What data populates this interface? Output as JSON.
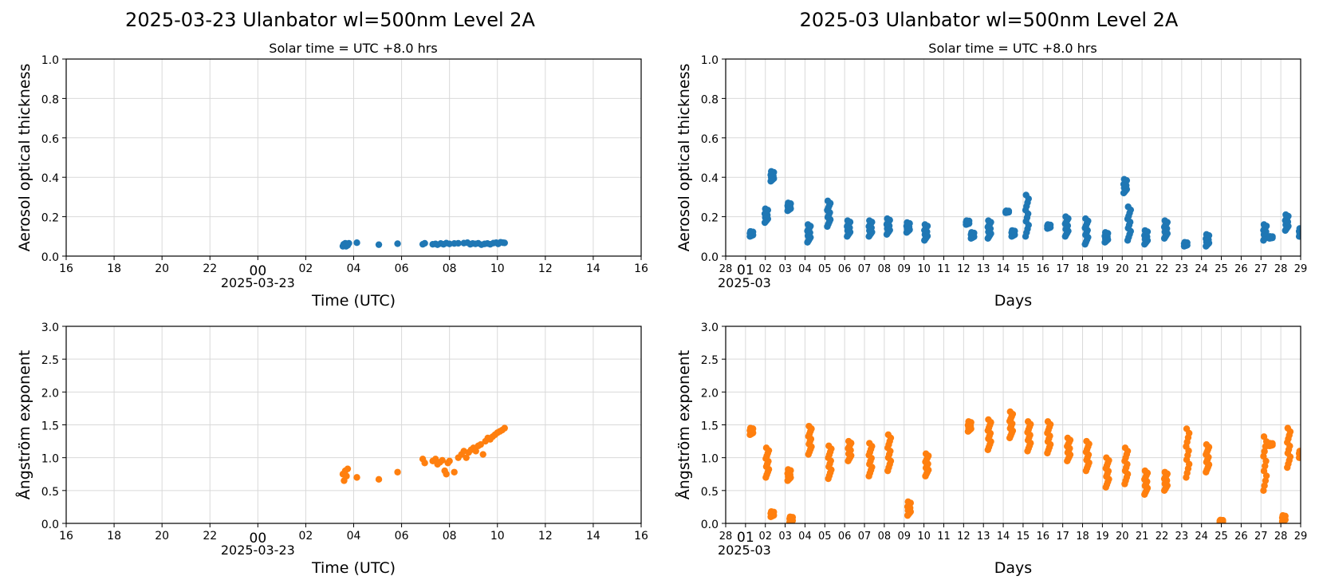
{
  "figure": {
    "left_title": "2025-03-23  Ulanbator  wl=500nm  Level 2A",
    "right_title": "2025-03  Ulanbator  wl=500nm  Level 2A",
    "left_subtitle": "Solar time = UTC +8.0 hrs",
    "right_subtitle": "Solar time = UTC +8.0 hrs"
  },
  "colors": {
    "aod": "#1f77b4",
    "angstrom": "#ff7f0e"
  },
  "chart_data": [
    {
      "id": "daily-aod",
      "type": "scatter",
      "title": "2025-03-23  Ulanbator  wl=500nm  Level 2A",
      "subtitle": "Solar time = UTC +8.0 hrs",
      "xlabel": "Time (UTC)",
      "ylabel": "Aerosol optical thickness",
      "xlim": [
        "2025-03-22 16:00",
        "2025-03-23 16:00"
      ],
      "ylim": [
        0,
        1.0
      ],
      "yticks": [
        0.0,
        0.2,
        0.4,
        0.6,
        0.8,
        1.0
      ],
      "xtick_labels": [
        "16",
        "18",
        "20",
        "22",
        "00",
        "02",
        "04",
        "06",
        "08",
        "10",
        "12",
        "14",
        "16"
      ],
      "xtick_hours": [
        0,
        2,
        4,
        6,
        8,
        10,
        12,
        14,
        16,
        18,
        20,
        22,
        24
      ],
      "date_label": "2025-03-23",
      "grid": true,
      "series": [
        {
          "x_time_utc": [
            "03:33",
            "03:35",
            "03:37",
            "03:39",
            "03:41",
            "03:43",
            "03:45",
            "03:48",
            "04:08",
            "05:03",
            "05:50",
            "06:53",
            "06:58",
            "07:18",
            "07:25",
            "07:30",
            "07:38",
            "07:45",
            "07:52",
            "08:00",
            "08:12",
            "08:22",
            "08:36",
            "08:45",
            "08:52",
            "08:58",
            "09:05",
            "09:12",
            "09:20",
            "09:28",
            "09:35",
            "09:42",
            "09:50",
            "09:57",
            "10:02",
            "10:08",
            "10:14",
            "10:18"
          ],
          "y": [
            0.05,
            0.06,
            0.055,
            0.065,
            0.05,
            0.06,
            0.055,
            0.065,
            0.068,
            0.058,
            0.063,
            0.06,
            0.065,
            0.06,
            0.062,
            0.058,
            0.064,
            0.06,
            0.066,
            0.062,
            0.064,
            0.065,
            0.066,
            0.068,
            0.06,
            0.064,
            0.062,
            0.065,
            0.058,
            0.062,
            0.064,
            0.06,
            0.066,
            0.068,
            0.062,
            0.07,
            0.068,
            0.067
          ]
        }
      ]
    },
    {
      "id": "daily-angstrom",
      "type": "scatter",
      "xlabel": "Time (UTC)",
      "ylabel": "Ångström exponent",
      "xlim": [
        "2025-03-22 16:00",
        "2025-03-23 16:00"
      ],
      "ylim": [
        0,
        3.0
      ],
      "yticks": [
        0.0,
        0.5,
        1.0,
        1.5,
        2.0,
        2.5,
        3.0
      ],
      "xtick_labels": [
        "16",
        "18",
        "20",
        "22",
        "00",
        "02",
        "04",
        "06",
        "08",
        "10",
        "12",
        "14",
        "16"
      ],
      "xtick_hours": [
        0,
        2,
        4,
        6,
        8,
        10,
        12,
        14,
        16,
        18,
        20,
        22,
        24
      ],
      "date_label": "2025-03-23",
      "grid": true,
      "series": [
        {
          "x_time_utc": [
            "03:33",
            "03:36",
            "03:39",
            "03:42",
            "03:45",
            "04:08",
            "05:03",
            "05:50",
            "06:53",
            "06:58",
            "07:18",
            "07:25",
            "07:30",
            "07:36",
            "07:42",
            "07:48",
            "07:52",
            "07:56",
            "08:00",
            "08:12",
            "08:22",
            "08:30",
            "08:36",
            "08:42",
            "08:48",
            "08:54",
            "09:00",
            "09:06",
            "09:12",
            "09:18",
            "09:24",
            "09:30",
            "09:36",
            "09:42",
            "09:48",
            "09:54",
            "10:00",
            "10:06",
            "10:12",
            "10:18"
          ],
          "y": [
            0.75,
            0.65,
            0.8,
            0.72,
            0.83,
            0.7,
            0.67,
            0.78,
            0.98,
            0.92,
            0.95,
            0.98,
            0.9,
            0.93,
            0.96,
            0.8,
            0.75,
            0.92,
            0.95,
            0.78,
            1.0,
            1.05,
            1.1,
            1.0,
            1.08,
            1.12,
            1.15,
            1.1,
            1.18,
            1.2,
            1.05,
            1.25,
            1.3,
            1.28,
            1.32,
            1.35,
            1.38,
            1.4,
            1.42,
            1.45
          ]
        }
      ]
    },
    {
      "id": "monthly-aod",
      "type": "scatter",
      "title": "2025-03  Ulanbator  wl=500nm  Level 2A",
      "subtitle": "Solar time = UTC +8.0 hrs",
      "xlabel": "Days",
      "ylabel": "Aerosol optical thickness",
      "xlim": [
        "2025-02-28",
        "2025-03-29"
      ],
      "ylim": [
        0,
        1.0
      ],
      "yticks": [
        0.0,
        0.2,
        0.4,
        0.6,
        0.8,
        1.0
      ],
      "xtick_labels": [
        "28",
        "01",
        "02",
        "03",
        "04",
        "05",
        "06",
        "07",
        "08",
        "09",
        "10",
        "11",
        "12",
        "13",
        "14",
        "15",
        "16",
        "17",
        "18",
        "19",
        "20",
        "21",
        "22",
        "23",
        "24",
        "25",
        "26",
        "27",
        "28",
        "29"
      ],
      "date_label": "2025-03",
      "grid": true,
      "clusters": [
        {
          "day": 1.3,
          "y": [
            0.1,
            0.125
          ]
        },
        {
          "day": 2.05,
          "y": [
            0.17,
            0.24
          ]
        },
        {
          "day": 2.35,
          "y": [
            0.38,
            0.43
          ]
        },
        {
          "day": 3.2,
          "y": [
            0.23,
            0.27
          ]
        },
        {
          "day": 4.2,
          "y": [
            0.07,
            0.16
          ]
        },
        {
          "day": 5.2,
          "y": [
            0.15,
            0.28
          ]
        },
        {
          "day": 6.2,
          "y": [
            0.1,
            0.18
          ]
        },
        {
          "day": 7.3,
          "y": [
            0.1,
            0.18
          ]
        },
        {
          "day": 8.2,
          "y": [
            0.11,
            0.19
          ]
        },
        {
          "day": 9.2,
          "y": [
            0.12,
            0.17
          ]
        },
        {
          "day": 10.1,
          "y": [
            0.08,
            0.16
          ]
        },
        {
          "day": 12.2,
          "y": [
            0.16,
            0.18
          ]
        },
        {
          "day": 12.45,
          "y": [
            0.09,
            0.12
          ]
        },
        {
          "day": 13.3,
          "y": [
            0.09,
            0.18
          ]
        },
        {
          "day": 14.2,
          "y": [
            0.22,
            0.23
          ]
        },
        {
          "day": 14.5,
          "y": [
            0.1,
            0.13
          ]
        },
        {
          "day": 15.2,
          "y": [
            0.1,
            0.31
          ]
        },
        {
          "day": 16.3,
          "y": [
            0.14,
            0.16
          ]
        },
        {
          "day": 17.2,
          "y": [
            0.1,
            0.2
          ]
        },
        {
          "day": 18.2,
          "y": [
            0.06,
            0.19
          ]
        },
        {
          "day": 19.2,
          "y": [
            0.07,
            0.12
          ]
        },
        {
          "day": 20.15,
          "y": [
            0.32,
            0.39
          ]
        },
        {
          "day": 20.35,
          "y": [
            0.08,
            0.25
          ]
        },
        {
          "day": 21.2,
          "y": [
            0.06,
            0.13
          ]
        },
        {
          "day": 22.2,
          "y": [
            0.09,
            0.18
          ]
        },
        {
          "day": 23.2,
          "y": [
            0.05,
            0.07
          ]
        },
        {
          "day": 24.3,
          "y": [
            0.05,
            0.11
          ]
        },
        {
          "day": 27.2,
          "y": [
            0.08,
            0.16
          ]
        },
        {
          "day": 27.5,
          "y": [
            0.09,
            0.1
          ]
        },
        {
          "day": 28.3,
          "y": [
            0.13,
            0.21
          ]
        },
        {
          "day": 29.0,
          "y": [
            0.1,
            0.14
          ]
        }
      ]
    },
    {
      "id": "monthly-angstrom",
      "type": "scatter",
      "xlabel": "Days",
      "ylabel": "Ångström exponent",
      "xlim": [
        "2025-02-28",
        "2025-03-29"
      ],
      "ylim": [
        0,
        3.0
      ],
      "yticks": [
        0.0,
        0.5,
        1.0,
        1.5,
        2.0,
        2.5,
        3.0
      ],
      "xtick_labels": [
        "28",
        "01",
        "02",
        "03",
        "04",
        "05",
        "06",
        "07",
        "08",
        "09",
        "10",
        "11",
        "12",
        "13",
        "14",
        "15",
        "16",
        "17",
        "18",
        "19",
        "20",
        "21",
        "22",
        "23",
        "24",
        "25",
        "26",
        "27",
        "28",
        "29"
      ],
      "date_label": "2025-03",
      "grid": true,
      "clusters": [
        {
          "day": 1.3,
          "y": [
            1.35,
            1.45
          ]
        },
        {
          "day": 2.1,
          "y": [
            0.7,
            1.15
          ]
        },
        {
          "day": 2.35,
          "y": [
            0.1,
            0.18
          ]
        },
        {
          "day": 3.2,
          "y": [
            0.65,
            0.82
          ]
        },
        {
          "day": 3.3,
          "y": [
            0.02,
            0.1
          ]
        },
        {
          "day": 4.25,
          "y": [
            1.05,
            1.48
          ]
        },
        {
          "day": 5.25,
          "y": [
            0.68,
            1.18
          ]
        },
        {
          "day": 6.25,
          "y": [
            0.95,
            1.25
          ]
        },
        {
          "day": 7.3,
          "y": [
            0.72,
            1.22
          ]
        },
        {
          "day": 8.25,
          "y": [
            0.8,
            1.35
          ]
        },
        {
          "day": 9.25,
          "y": [
            0.12,
            0.33
          ]
        },
        {
          "day": 10.15,
          "y": [
            0.72,
            1.06
          ]
        },
        {
          "day": 12.3,
          "y": [
            1.4,
            1.55
          ]
        },
        {
          "day": 13.3,
          "y": [
            1.12,
            1.58
          ]
        },
        {
          "day": 14.4,
          "y": [
            1.3,
            1.7
          ]
        },
        {
          "day": 15.3,
          "y": [
            1.1,
            1.55
          ]
        },
        {
          "day": 16.3,
          "y": [
            1.07,
            1.55
          ]
        },
        {
          "day": 17.3,
          "y": [
            0.95,
            1.3
          ]
        },
        {
          "day": 18.25,
          "y": [
            0.8,
            1.25
          ]
        },
        {
          "day": 19.25,
          "y": [
            0.55,
            1.0
          ]
        },
        {
          "day": 20.2,
          "y": [
            0.6,
            1.15
          ]
        },
        {
          "day": 21.2,
          "y": [
            0.44,
            0.8
          ]
        },
        {
          "day": 22.2,
          "y": [
            0.5,
            0.78
          ]
        },
        {
          "day": 23.3,
          "y": [
            0.7,
            1.44
          ]
        },
        {
          "day": 24.3,
          "y": [
            0.78,
            1.2
          ]
        },
        {
          "day": 25.0,
          "y": [
            0.02,
            0.05
          ]
        },
        {
          "day": 27.2,
          "y": [
            0.5,
            1.32
          ]
        },
        {
          "day": 27.5,
          "y": [
            1.18,
            1.22
          ]
        },
        {
          "day": 28.15,
          "y": [
            0.03,
            0.12
          ]
        },
        {
          "day": 28.4,
          "y": [
            0.85,
            1.45
          ]
        },
        {
          "day": 29.0,
          "y": [
            1.0,
            1.1
          ]
        }
      ]
    }
  ]
}
